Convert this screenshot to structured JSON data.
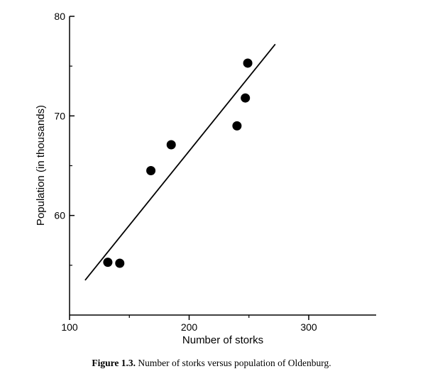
{
  "chart_data": {
    "type": "scatter",
    "title": "",
    "xlabel": "Number of storks",
    "ylabel": "Population (in thousands)",
    "xlim": [
      100,
      350
    ],
    "ylim": [
      50,
      80
    ],
    "xticks": [
      100,
      200,
      300
    ],
    "yticks": [
      60,
      70,
      80
    ],
    "minor_xticks": [
      150,
      250
    ],
    "minor_yticks": [
      55,
      65,
      75
    ],
    "grid": false,
    "points": [
      {
        "x": 132,
        "y": 55.3
      },
      {
        "x": 142,
        "y": 55.2
      },
      {
        "x": 168,
        "y": 64.5
      },
      {
        "x": 185,
        "y": 67.1
      },
      {
        "x": 240,
        "y": 69.0
      },
      {
        "x": 247,
        "y": 71.8
      },
      {
        "x": 249,
        "y": 75.3
      }
    ],
    "fit_line": [
      {
        "x": 113,
        "y": 53.5
      },
      {
        "x": 272,
        "y": 77.2
      }
    ],
    "point_color": "#000000",
    "line_color": "#000000"
  },
  "caption": {
    "label": "Figure 1.3.",
    "text": " Number of storks versus population of Oldenburg."
  }
}
